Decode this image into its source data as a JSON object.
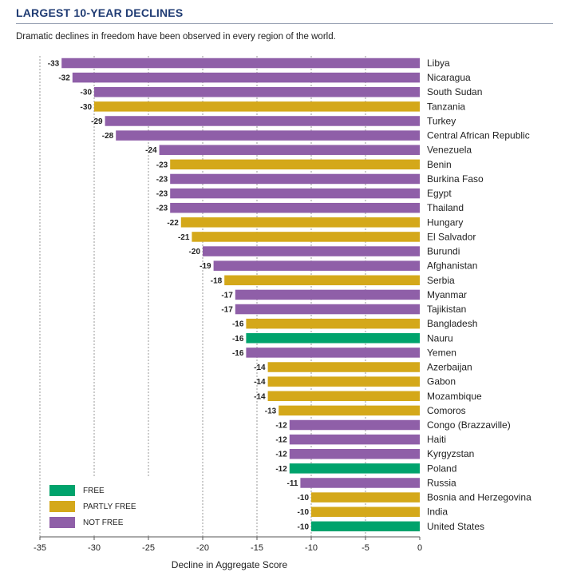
{
  "title": "LARGEST 10-YEAR DECLINES",
  "subtitle": "Dramatic declines in freedom have been observed in every region of the world.",
  "colors": {
    "FREE": "#00a36c",
    "PARTLY FREE": "#d4a81a",
    "NOT FREE": "#8f5fa8",
    "title": "#1f3b73",
    "grid": "#999999"
  },
  "legend": [
    {
      "key": "FREE",
      "label": "FREE"
    },
    {
      "key": "PARTLY FREE",
      "label": "PARTLY FREE"
    },
    {
      "key": "NOT FREE",
      "label": "NOT FREE"
    }
  ],
  "chart_data": {
    "type": "bar",
    "orientation": "horizontal",
    "xlabel": "Decline in Aggregate Score",
    "xlim": [
      -35,
      0
    ],
    "xticks": [
      -35,
      -30,
      -25,
      -20,
      -15,
      -10,
      -5,
      0
    ],
    "grid": "vertical dashed",
    "legend_position": "bottom-left",
    "bars": [
      {
        "country": "Libya",
        "value": -33,
        "status": "NOT FREE"
      },
      {
        "country": "Nicaragua",
        "value": -32,
        "status": "NOT FREE"
      },
      {
        "country": "South Sudan",
        "value": -30,
        "status": "NOT FREE"
      },
      {
        "country": "Tanzania",
        "value": -30,
        "status": "PARTLY FREE"
      },
      {
        "country": "Turkey",
        "value": -29,
        "status": "NOT FREE"
      },
      {
        "country": "Central African Republic",
        "value": -28,
        "status": "NOT FREE"
      },
      {
        "country": "Venezuela",
        "value": -24,
        "status": "NOT FREE"
      },
      {
        "country": "Benin",
        "value": -23,
        "status": "PARTLY FREE"
      },
      {
        "country": "Burkina Faso",
        "value": -23,
        "status": "NOT FREE"
      },
      {
        "country": "Egypt",
        "value": -23,
        "status": "NOT FREE"
      },
      {
        "country": "Thailand",
        "value": -23,
        "status": "NOT FREE"
      },
      {
        "country": "Hungary",
        "value": -22,
        "status": "PARTLY FREE"
      },
      {
        "country": "El Salvador",
        "value": -21,
        "status": "PARTLY FREE"
      },
      {
        "country": "Burundi",
        "value": -20,
        "status": "NOT FREE"
      },
      {
        "country": "Afghanistan",
        "value": -19,
        "status": "NOT FREE"
      },
      {
        "country": "Serbia",
        "value": -18,
        "status": "PARTLY FREE"
      },
      {
        "country": "Myanmar",
        "value": -17,
        "status": "NOT FREE"
      },
      {
        "country": "Tajikistan",
        "value": -17,
        "status": "NOT FREE"
      },
      {
        "country": "Bangladesh",
        "value": -16,
        "status": "PARTLY FREE"
      },
      {
        "country": "Nauru",
        "value": -16,
        "status": "FREE"
      },
      {
        "country": "Yemen",
        "value": -16,
        "status": "NOT FREE"
      },
      {
        "country": "Azerbaijan",
        "value": -14,
        "status": "PARTLY FREE"
      },
      {
        "country": "Gabon",
        "value": -14,
        "status": "PARTLY FREE"
      },
      {
        "country": "Mozambique",
        "value": -14,
        "status": "PARTLY FREE"
      },
      {
        "country": "Comoros",
        "value": -13,
        "status": "PARTLY FREE"
      },
      {
        "country": "Congo (Brazzaville)",
        "value": -12,
        "status": "NOT FREE"
      },
      {
        "country": "Haiti",
        "value": -12,
        "status": "NOT FREE"
      },
      {
        "country": "Kyrgyzstan",
        "value": -12,
        "status": "NOT FREE"
      },
      {
        "country": "Poland",
        "value": -12,
        "status": "FREE"
      },
      {
        "country": "Russia",
        "value": -11,
        "status": "NOT FREE"
      },
      {
        "country": "Bosnia and Herzegovina",
        "value": -10,
        "status": "PARTLY FREE"
      },
      {
        "country": "India",
        "value": -10,
        "status": "PARTLY FREE"
      },
      {
        "country": "United States",
        "value": -10,
        "status": "FREE"
      }
    ]
  }
}
